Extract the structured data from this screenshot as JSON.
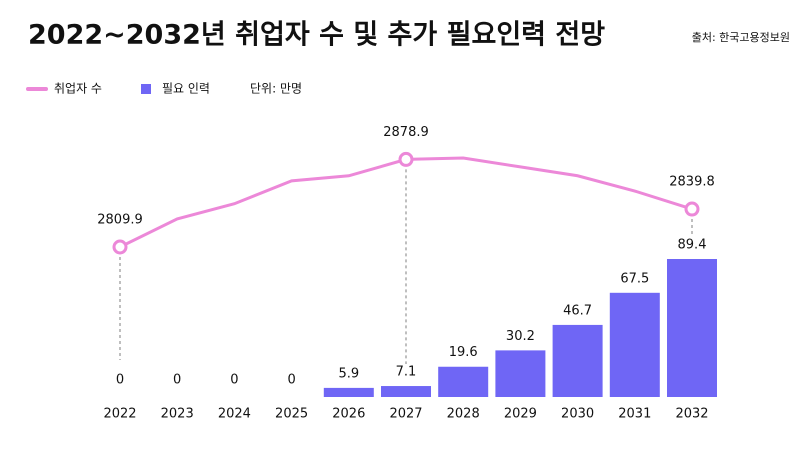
{
  "chart_data": {
    "type": "bar_line",
    "title": "2022~2032년 취업자 수 및 추가 필요인력 전망",
    "source": "출처: 한국고용정보원",
    "unit": "단위: 만명",
    "categories": [
      "2022",
      "2023",
      "2024",
      "2025",
      "2026",
      "2027",
      "2028",
      "2029",
      "2030",
      "2031",
      "2032"
    ],
    "series": [
      {
        "name": "취업자 수",
        "type": "line",
        "color": "#ec88d8",
        "values": [
          2809.9,
          2832,
          2844,
          2862,
          2866,
          2878.9,
          2880,
          2873,
          2866,
          2854,
          2839.8
        ],
        "value_labels": [
          "2809.9",
          null,
          null,
          null,
          null,
          "2878.9",
          null,
          null,
          null,
          null,
          "2839.8"
        ]
      },
      {
        "name": "필요 인력",
        "type": "bar",
        "color": "#6f66f5",
        "values": [
          0,
          0,
          0,
          0,
          5.9,
          7.1,
          19.6,
          30.2,
          46.7,
          67.5,
          89.4
        ]
      }
    ]
  }
}
